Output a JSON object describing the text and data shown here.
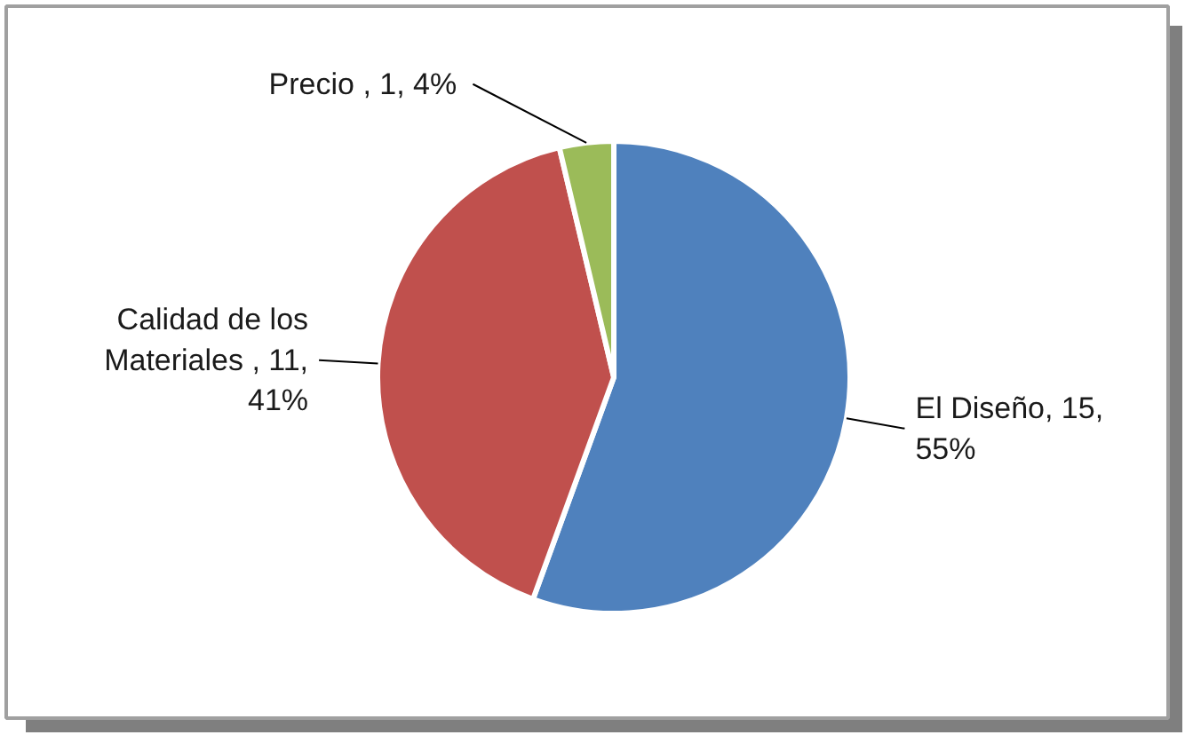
{
  "chart_data": {
    "type": "pie",
    "categories": [
      "El Diseño",
      "Calidad de los Materiales ",
      "Precio "
    ],
    "values": [
      15,
      11,
      1
    ],
    "colors": [
      "#4f81bd",
      "#c0504d",
      "#9bbb59"
    ],
    "value_labels": [
      "15, 55%",
      "11, 41%",
      "1, 4%"
    ],
    "legend": false
  }
}
